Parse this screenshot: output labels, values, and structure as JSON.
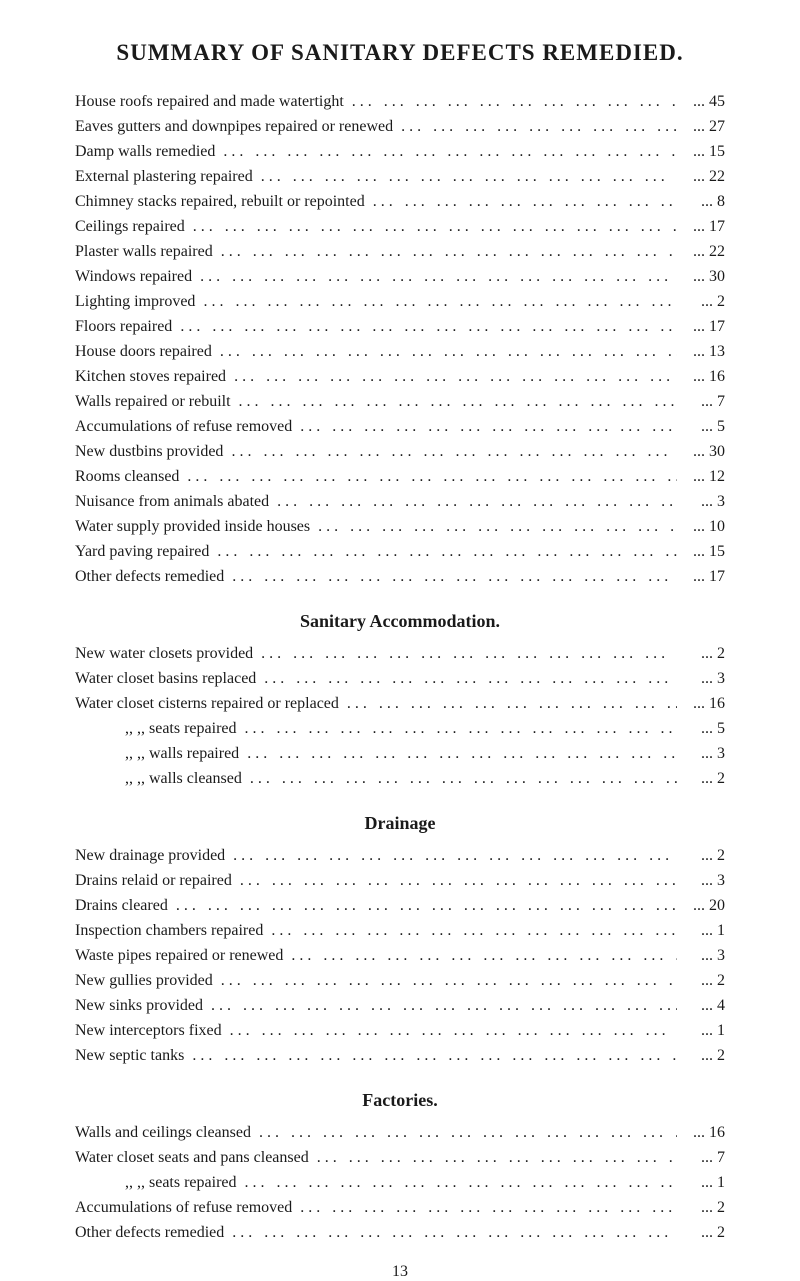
{
  "title": "SUMMARY OF SANITARY DEFECTS REMEDIED.",
  "mainSection": [
    {
      "label": "House roofs repaired and made watertight",
      "value": "45"
    },
    {
      "label": "Eaves gutters and downpipes repaired or renewed",
      "value": "27"
    },
    {
      "label": "Damp walls remedied",
      "value": "15"
    },
    {
      "label": "External plastering repaired",
      "value": "22"
    },
    {
      "label": "Chimney stacks repaired, rebuilt or repointed",
      "value": "8"
    },
    {
      "label": "Ceilings repaired",
      "value": "17"
    },
    {
      "label": "Plaster walls repaired",
      "value": "22"
    },
    {
      "label": "Windows repaired",
      "value": "30"
    },
    {
      "label": "Lighting improved",
      "value": "2"
    },
    {
      "label": "Floors repaired",
      "value": "17"
    },
    {
      "label": "House doors repaired",
      "value": "13"
    },
    {
      "label": "Kitchen stoves repaired",
      "value": "16"
    },
    {
      "label": "Walls repaired or rebuilt",
      "value": "7"
    },
    {
      "label": "Accumulations of refuse removed",
      "value": "5"
    },
    {
      "label": "New dustbins provided",
      "value": "30"
    },
    {
      "label": "Rooms cleansed",
      "value": "12"
    },
    {
      "label": "Nuisance from animals abated",
      "value": "3"
    },
    {
      "label": "Water supply provided inside houses",
      "value": "10"
    },
    {
      "label": "Yard paving repaired",
      "value": "15"
    },
    {
      "label": "Other defects remedied",
      "value": "17"
    }
  ],
  "sanitarySection": {
    "title": "Sanitary Accommodation.",
    "items": [
      {
        "label": "New water closets provided",
        "value": "2",
        "indent": false
      },
      {
        "label": "Water closet basins replaced",
        "value": "3",
        "indent": false
      },
      {
        "label": "Water closet cisterns repaired or replaced",
        "value": "16",
        "indent": false
      },
      {
        "label": ",,      ,,    seats repaired",
        "value": "5",
        "indent": true
      },
      {
        "label": ",,      ,,    walls repaired",
        "value": "3",
        "indent": true
      },
      {
        "label": ",,      ,,    walls cleansed",
        "value": "2",
        "indent": true
      }
    ]
  },
  "drainageSection": {
    "title": "Drainage",
    "items": [
      {
        "label": "New drainage provided",
        "value": "2"
      },
      {
        "label": "Drains relaid or repaired",
        "value": "3"
      },
      {
        "label": "Drains cleared",
        "value": "20"
      },
      {
        "label": "Inspection chambers repaired",
        "value": "1"
      },
      {
        "label": "Waste pipes repaired or renewed",
        "value": "3"
      },
      {
        "label": "New gullies provided",
        "value": "2"
      },
      {
        "label": "New sinks provided",
        "value": "4"
      },
      {
        "label": "New interceptors fixed",
        "value": "1"
      },
      {
        "label": "New septic tanks",
        "value": "2"
      }
    ]
  },
  "factoriesSection": {
    "title": "Factories.",
    "items": [
      {
        "label": "Walls and ceilings cleansed",
        "value": "16",
        "indent": false
      },
      {
        "label": "Water closet seats and pans cleansed",
        "value": "7",
        "indent": false
      },
      {
        "label": ",,      ,,    seats repaired",
        "value": "1",
        "indent": true
      },
      {
        "label": "Accumulations of refuse removed",
        "value": "2",
        "indent": false
      },
      {
        "label": "Other defects remedied",
        "value": "2",
        "indent": false
      }
    ]
  },
  "pageNumber": "13",
  "dotLeader": "..."
}
